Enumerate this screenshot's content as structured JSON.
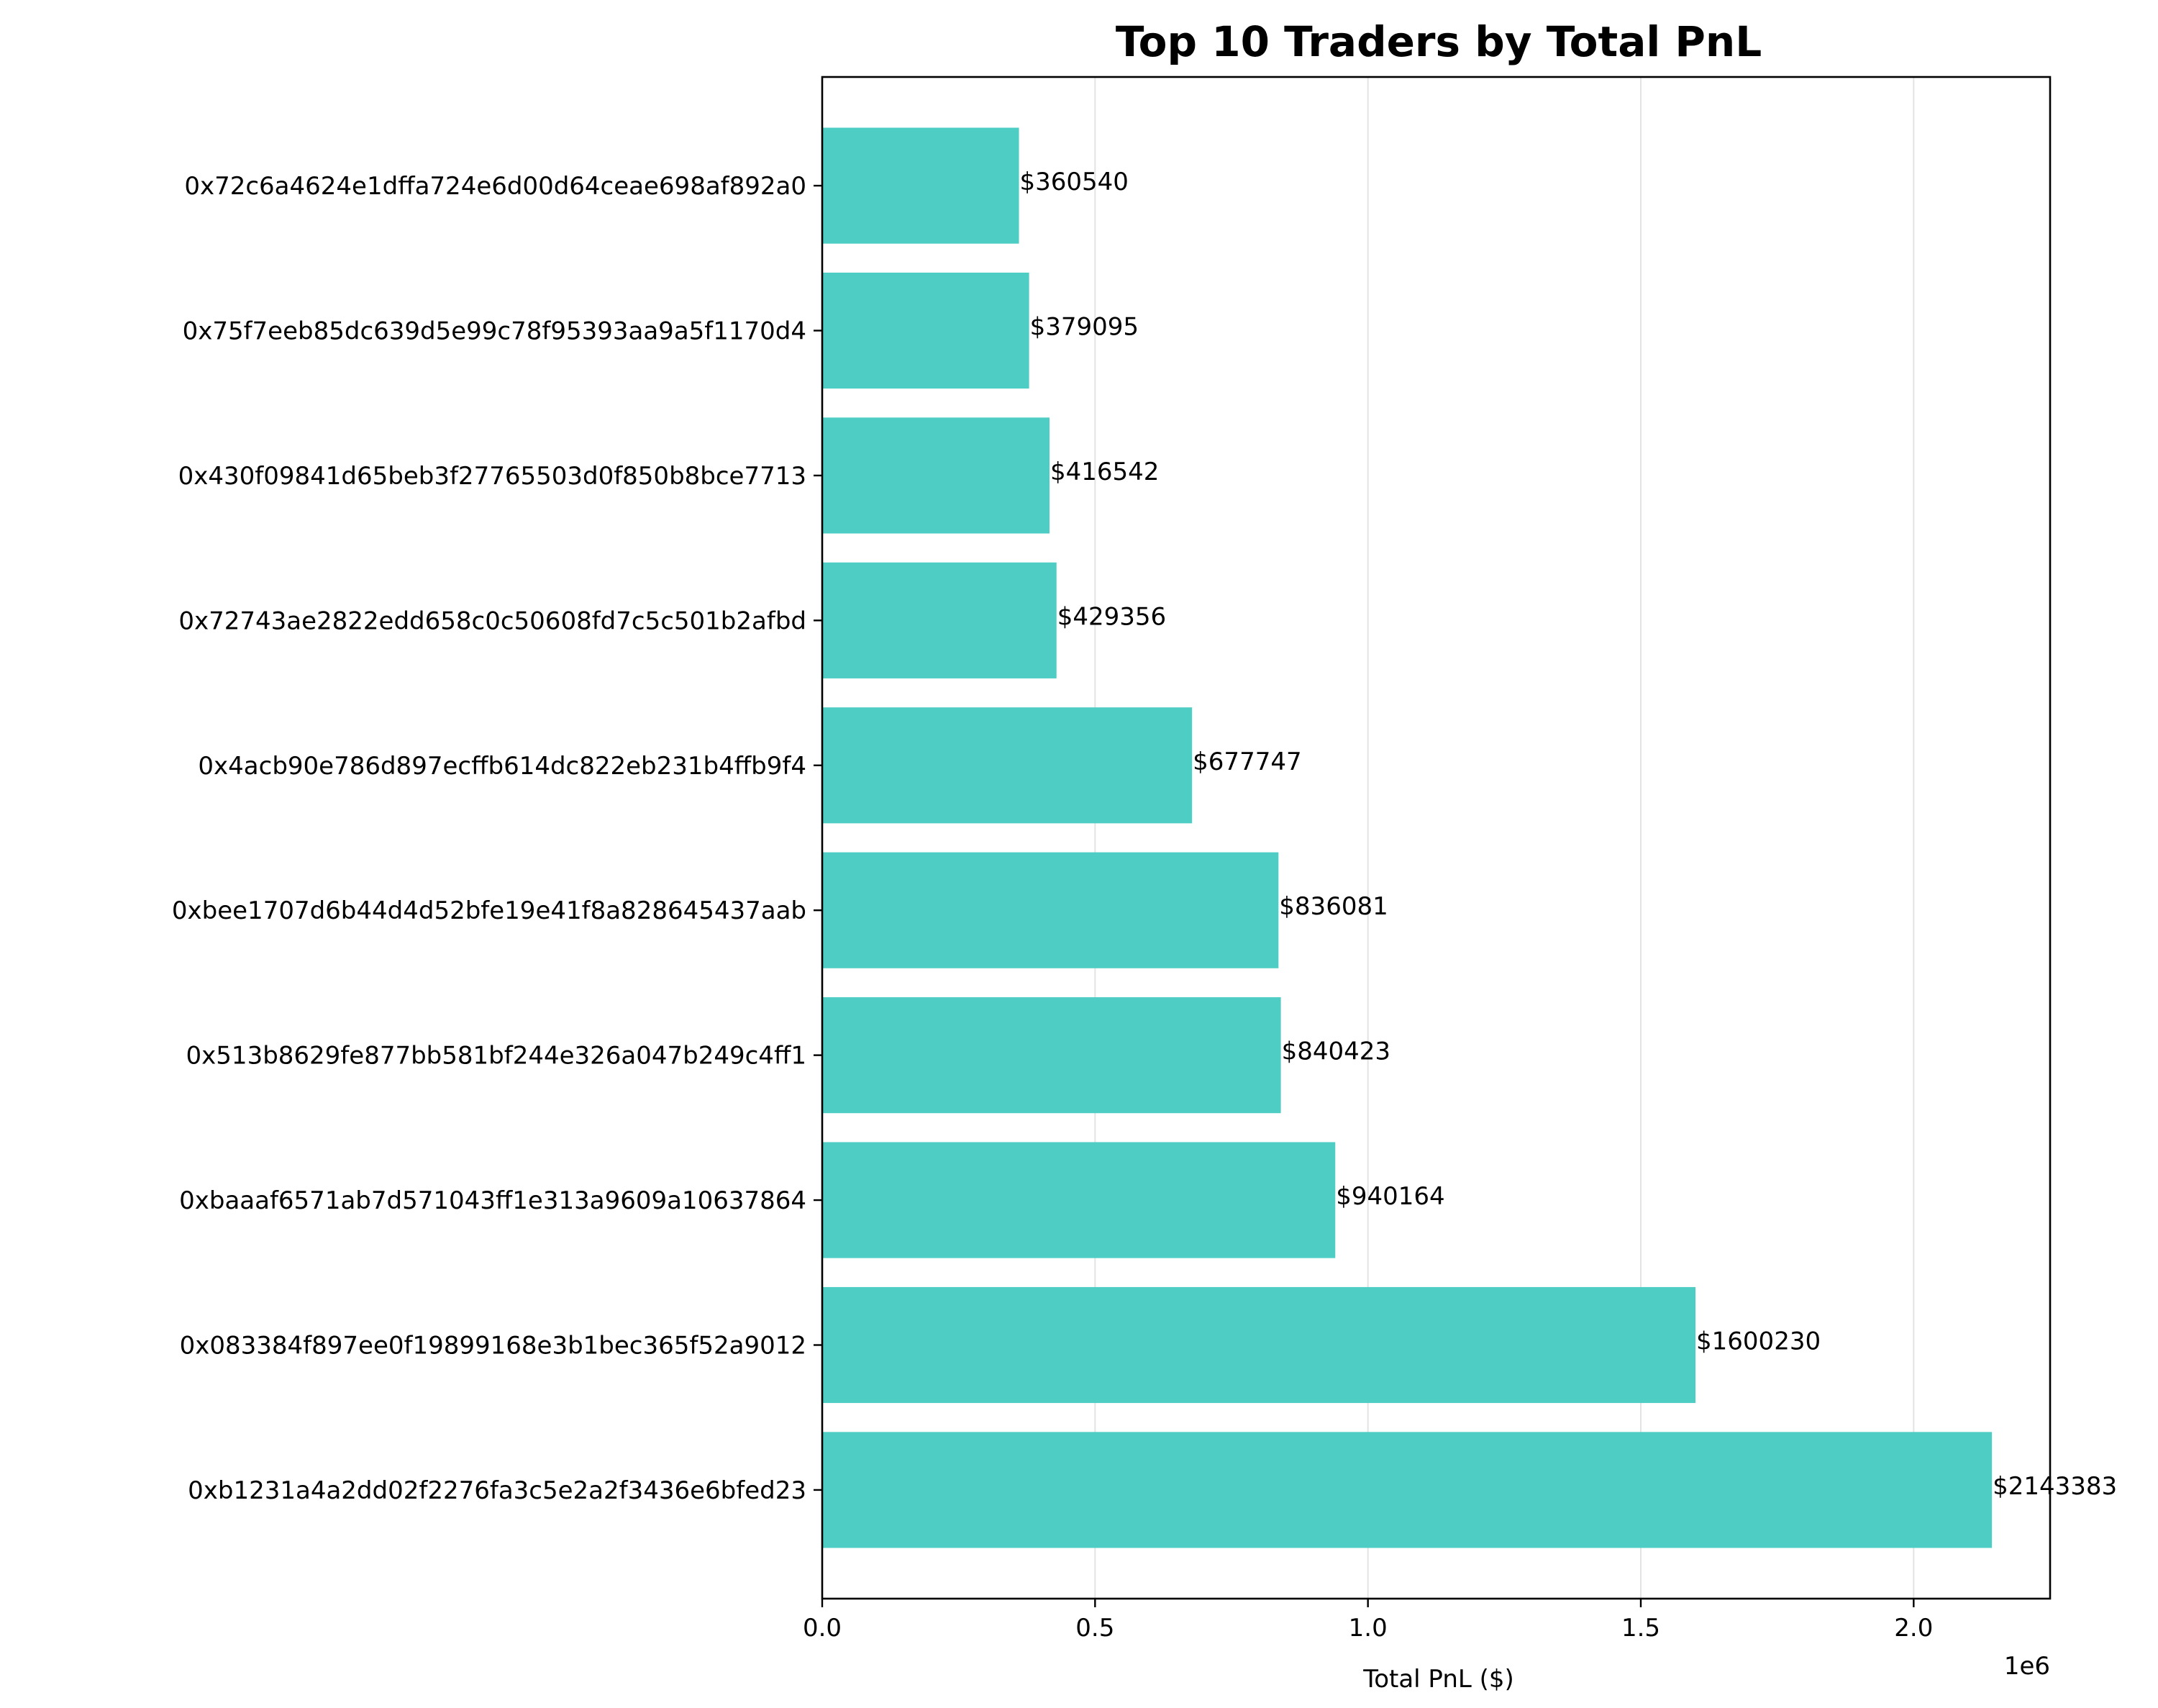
{
  "chart_data": {
    "type": "bar",
    "orientation": "horizontal",
    "title": "Top 10 Traders by Total PnL",
    "xlabel": "Total PnL ($)",
    "ylabel": "",
    "x_scale_label": "1e6",
    "xlim": [
      0,
      2250000
    ],
    "x_ticks": [
      {
        "value": 0,
        "label": "0.0"
      },
      {
        "value": 500000,
        "label": "0.5"
      },
      {
        "value": 1000000,
        "label": "1.0"
      },
      {
        "value": 1500000,
        "label": "1.5"
      },
      {
        "value": 2000000,
        "label": "2.0"
      }
    ],
    "grid": "x-axis vertical lines",
    "bar_color": "#4ECDC4",
    "categories": [
      "0xb1231a4a2dd02f2276fa3c5e2a2f3436e6bfed23",
      "0x083384f897ee0f19899168e3b1bec365f52a9012",
      "0xbaaaf6571ab7d571043ff1e313a9609a10637864",
      "0x513b8629fe877bb581bf244e326a047b249c4ff1",
      "0xbee1707d6b44d4d52bfe19e41f8a828645437aab",
      "0x4acb90e786d897ecffb614dc822eb231b4ffb9f4",
      "0x72743ae2822edd658c0c50608fd7c5c501b2afbd",
      "0x430f09841d65beb3f27765503d0f850b8bce7713",
      "0x75f7eeb85dc639d5e99c78f95393aa9a5f1170d4",
      "0x72c6a4624e1dffa724e6d00d64ceae698af892a0"
    ],
    "values": [
      2143383,
      1600230,
      940164,
      840423,
      836081,
      677747,
      429356,
      416542,
      379095,
      360540
    ],
    "data_labels": [
      "$2143383",
      "$1600230",
      "$940164",
      "$840423",
      "$836081",
      "$677747",
      "$429356",
      "$416542",
      "$379095",
      "$360540"
    ]
  }
}
